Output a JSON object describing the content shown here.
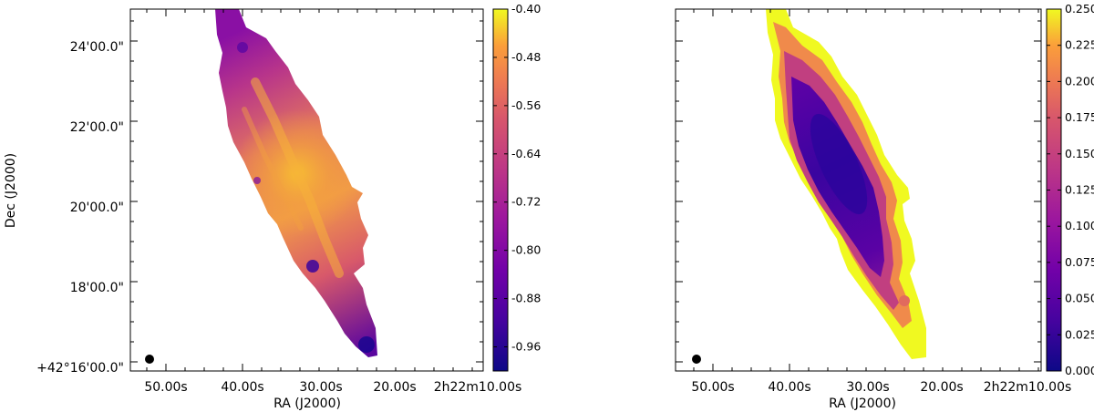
{
  "chart_data": [
    {
      "type": "heatmap",
      "title": "",
      "xlabel": "RA (J2000)",
      "ylabel": "Dec (J2000)",
      "x_tick_labels": [
        "50.00s",
        "40.00s",
        "30.00s",
        "20.00s",
        "2h22m10.00s"
      ],
      "y_tick_labels": [
        "+42°16'00.0\"",
        "18'00.0\"",
        "20'00.0\"",
        "22'00.0\"",
        "24'00.0\""
      ],
      "colormap": "plasma",
      "colorbar": {
        "range": [
          -1.0,
          -0.4
        ],
        "tick_values": [
          -0.96,
          -0.88,
          -0.8,
          -0.72,
          -0.64,
          -0.56,
          -0.48,
          -0.4
        ],
        "tick_labels": [
          "-0.96",
          "-0.88",
          "-0.80",
          "-0.72",
          "-0.64",
          "-0.56",
          "-0.48",
          "-0.40"
        ]
      },
      "beam_marker": true,
      "grid": false
    },
    {
      "type": "heatmap",
      "title": "",
      "xlabel": "RA (J2000)",
      "ylabel": "",
      "x_tick_labels": [
        "50.00s",
        "40.00s",
        "30.00s",
        "20.00s",
        "2h22m10.00s"
      ],
      "y_tick_labels": [],
      "colormap": "plasma",
      "colorbar": {
        "range": [
          0.0,
          0.25
        ],
        "tick_values": [
          0.0,
          0.025,
          0.05,
          0.075,
          0.1,
          0.125,
          0.15,
          0.175,
          0.2,
          0.225,
          0.25
        ],
        "tick_labels": [
          "0.000",
          "0.025",
          "0.050",
          "0.075",
          "0.100",
          "0.125",
          "0.150",
          "0.175",
          "0.200",
          "0.225",
          "0.250"
        ]
      },
      "beam_marker": true,
      "grid": false
    }
  ]
}
